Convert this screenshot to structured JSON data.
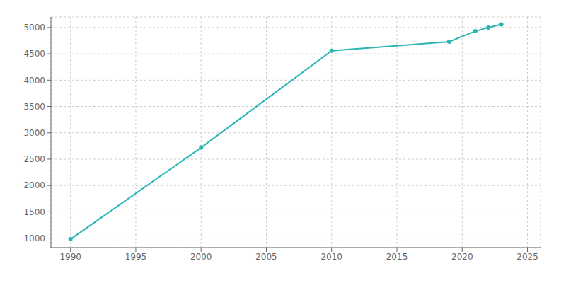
{
  "chart_data": {
    "type": "line",
    "x": [
      1990,
      2000,
      2010,
      2019,
      2021,
      2022,
      2023
    ],
    "values": [
      980,
      2720,
      4560,
      4730,
      4930,
      5000,
      5060
    ],
    "color": "#2ab5b5",
    "marker": "circle",
    "xlim": [
      1988.5,
      2026
    ],
    "ylim": [
      820,
      5200
    ],
    "xticks": [
      1990,
      1995,
      2000,
      2005,
      2010,
      2015,
      2020,
      2025
    ],
    "yticks": [
      1000,
      1500,
      2000,
      2500,
      3000,
      3500,
      4000,
      4500,
      5000
    ],
    "grid": true
  }
}
